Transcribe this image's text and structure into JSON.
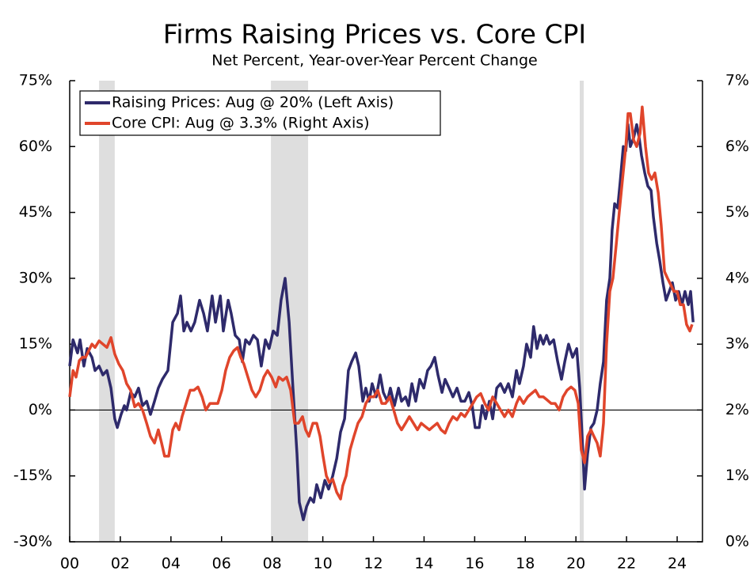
{
  "chart_data": {
    "type": "line",
    "title": "Firms Raising Prices vs. Core CPI",
    "subtitle": "Net Percent, Year-over-Year Percent Change",
    "xlim": [
      2000,
      2025
    ],
    "xticks": [
      {
        "value": 2000,
        "label": "00"
      },
      {
        "value": 2002,
        "label": "02"
      },
      {
        "value": 2004,
        "label": "04"
      },
      {
        "value": 2006,
        "label": "06"
      },
      {
        "value": 2008,
        "label": "08"
      },
      {
        "value": 2010,
        "label": "10"
      },
      {
        "value": 2012,
        "label": "12"
      },
      {
        "value": 2014,
        "label": "14"
      },
      {
        "value": 2016,
        "label": "16"
      },
      {
        "value": 2018,
        "label": "18"
      },
      {
        "value": 2020,
        "label": "20"
      },
      {
        "value": 2022,
        "label": "22"
      },
      {
        "value": 2024,
        "label": "24"
      }
    ],
    "ylim": [
      -30,
      75
    ],
    "yticks": [
      {
        "value": -30,
        "label": "-30%"
      },
      {
        "value": -15,
        "label": "-15%"
      },
      {
        "value": 0,
        "label": "0%"
      },
      {
        "value": 15,
        "label": "15%"
      },
      {
        "value": 30,
        "label": "30%"
      },
      {
        "value": 45,
        "label": "45%"
      },
      {
        "value": 60,
        "label": "60%"
      },
      {
        "value": 75,
        "label": "75%"
      }
    ],
    "y2lim": [
      0,
      7
    ],
    "y2ticks": [
      {
        "value": 0,
        "label": "0%"
      },
      {
        "value": 1,
        "label": "1%"
      },
      {
        "value": 2,
        "label": "2%"
      },
      {
        "value": 3,
        "label": "3%"
      },
      {
        "value": 4,
        "label": "4%"
      },
      {
        "value": 5,
        "label": "5%"
      },
      {
        "value": 6,
        "label": "6%"
      },
      {
        "value": 7,
        "label": "7%"
      }
    ],
    "shaded_periods": [
      [
        2001.16,
        2001.78
      ],
      [
        2007.95,
        2009.42
      ],
      [
        2020.15,
        2020.31
      ]
    ],
    "shade_color": "#dedede",
    "legend": "upper left",
    "series": [
      {
        "name": "Raising Prices: Aug @ 20% (Left Axis)",
        "color": "#2e2a6b",
        "axis": "y",
        "x": [
          2000.0,
          2000.13,
          2000.31,
          2000.41,
          2000.56,
          2000.69,
          2000.88,
          2001.0,
          2001.16,
          2001.31,
          2001.47,
          2001.63,
          2001.78,
          2001.88,
          2002.03,
          2002.16,
          2002.25,
          2002.41,
          2002.57,
          2002.72,
          2002.88,
          2003.04,
          2003.19,
          2003.35,
          2003.5,
          2003.66,
          2003.88,
          2004.07,
          2004.26,
          2004.38,
          2004.51,
          2004.63,
          2004.79,
          2004.94,
          2005.13,
          2005.29,
          2005.44,
          2005.63,
          2005.76,
          2005.95,
          2006.07,
          2006.26,
          2006.38,
          2006.54,
          2006.7,
          2006.82,
          2006.95,
          2007.1,
          2007.26,
          2007.42,
          2007.57,
          2007.73,
          2007.88,
          2008.04,
          2008.2,
          2008.35,
          2008.51,
          2008.67,
          2008.82,
          2008.98,
          2009.07,
          2009.23,
          2009.36,
          2009.51,
          2009.64,
          2009.76,
          2009.92,
          2010.08,
          2010.23,
          2010.39,
          2010.55,
          2010.7,
          2010.86,
          2011.01,
          2011.14,
          2011.3,
          2011.42,
          2011.58,
          2011.7,
          2011.83,
          2011.95,
          2012.11,
          2012.27,
          2012.39,
          2012.55,
          2012.67,
          2012.83,
          2012.99,
          2013.11,
          2013.27,
          2013.39,
          2013.52,
          2013.67,
          2013.83,
          2013.99,
          2014.14,
          2014.27,
          2014.42,
          2014.55,
          2014.71,
          2014.83,
          2014.99,
          2015.14,
          2015.3,
          2015.46,
          2015.61,
          2015.77,
          2015.9,
          2016.02,
          2016.18,
          2016.3,
          2016.43,
          2016.58,
          2016.71,
          2016.87,
          2017.02,
          2017.18,
          2017.33,
          2017.49,
          2017.65,
          2017.77,
          2017.93,
          2018.05,
          2018.21,
          2018.33,
          2018.46,
          2018.59,
          2018.71,
          2018.84,
          2018.96,
          2019.12,
          2019.28,
          2019.43,
          2019.56,
          2019.71,
          2019.87,
          2020.03,
          2020.15,
          2020.28,
          2020.34,
          2020.46,
          2020.59,
          2020.71,
          2020.84,
          2020.96,
          2021.09,
          2021.21,
          2021.34,
          2021.43,
          2021.53,
          2021.65,
          2021.75,
          2021.87,
          2021.97,
          2022.06,
          2022.15,
          2022.28,
          2022.4,
          2022.5,
          2022.59,
          2022.72,
          2022.84,
          2022.97,
          2023.06,
          2023.19,
          2023.31,
          2023.44,
          2023.56,
          2023.69,
          2023.81,
          2023.94,
          2024.06,
          2024.19,
          2024.31,
          2024.44,
          2024.53,
          2024.63
        ],
        "values": [
          10,
          16,
          13,
          16,
          10,
          14,
          12,
          9,
          10,
          8,
          9,
          5,
          -2,
          -4,
          -1,
          1,
          0,
          4,
          3,
          5,
          1,
          2,
          -1,
          2,
          5,
          7,
          9,
          20,
          22,
          26,
          18,
          20,
          18,
          20,
          25,
          22,
          18,
          26,
          20,
          26,
          18,
          25,
          22,
          17,
          16,
          11,
          16,
          15,
          17,
          16,
          10,
          16,
          14,
          18,
          17,
          25,
          30,
          20,
          5,
          -10,
          -21,
          -25,
          -22,
          -20,
          -21,
          -17,
          -20,
          -16,
          -18,
          -15,
          -11,
          -5,
          -2,
          9,
          11,
          13,
          10,
          2,
          5,
          2,
          6,
          3,
          8,
          4,
          2,
          5,
          1,
          5,
          2,
          3,
          1,
          6,
          2,
          7,
          5,
          9,
          10,
          12,
          8,
          4,
          7,
          5,
          3,
          5,
          2,
          2,
          4,
          1,
          -4,
          -4,
          1,
          -2,
          2,
          -2,
          5,
          6,
          4,
          6,
          3,
          9,
          6,
          10,
          15,
          12,
          19,
          14,
          17,
          15,
          17,
          15,
          16,
          11,
          7,
          11,
          15,
          12,
          14,
          5,
          -10,
          -18,
          -10,
          -4,
          -3,
          0,
          6,
          11,
          25,
          30,
          41,
          47,
          46,
          52,
          60,
          59,
          65,
          60,
          62,
          65,
          62,
          58,
          54,
          51,
          50,
          44,
          38,
          34,
          29,
          25,
          27,
          29,
          25,
          27,
          24,
          27,
          24,
          27,
          20
        ]
      },
      {
        "name": "Core CPI: Aug @ 3.3% (Right Axis)",
        "color": "#e0452b",
        "axis": "y2",
        "x": [
          2000.0,
          2000.13,
          2000.25,
          2000.38,
          2000.5,
          2000.63,
          2000.75,
          2000.88,
          2001.0,
          2001.16,
          2001.31,
          2001.47,
          2001.63,
          2001.78,
          2001.94,
          2002.1,
          2002.25,
          2002.41,
          2002.57,
          2002.72,
          2002.88,
          2003.04,
          2003.19,
          2003.35,
          2003.5,
          2003.63,
          2003.75,
          2003.91,
          2004.07,
          2004.19,
          2004.32,
          2004.44,
          2004.6,
          2004.76,
          2004.91,
          2005.07,
          2005.23,
          2005.38,
          2005.54,
          2005.69,
          2005.85,
          2006.01,
          2006.16,
          2006.32,
          2006.48,
          2006.63,
          2006.76,
          2006.88,
          2007.04,
          2007.2,
          2007.35,
          2007.51,
          2007.67,
          2007.82,
          2007.98,
          2008.14,
          2008.26,
          2008.42,
          2008.57,
          2008.73,
          2008.89,
          2009.04,
          2009.2,
          2009.32,
          2009.45,
          2009.61,
          2009.76,
          2009.89,
          2010.01,
          2010.14,
          2010.26,
          2010.39,
          2010.55,
          2010.7,
          2010.79,
          2010.92,
          2011.08,
          2011.23,
          2011.39,
          2011.55,
          2011.7,
          2011.86,
          2012.02,
          2012.17,
          2012.33,
          2012.48,
          2012.64,
          2012.8,
          2012.95,
          2013.11,
          2013.27,
          2013.42,
          2013.58,
          2013.74,
          2013.89,
          2014.05,
          2014.21,
          2014.36,
          2014.52,
          2014.67,
          2014.83,
          2014.99,
          2015.14,
          2015.3,
          2015.46,
          2015.61,
          2015.77,
          2015.93,
          2016.08,
          2016.24,
          2016.4,
          2016.55,
          2016.71,
          2016.87,
          2017.02,
          2017.18,
          2017.33,
          2017.49,
          2017.65,
          2017.77,
          2017.93,
          2018.09,
          2018.24,
          2018.4,
          2018.55,
          2018.71,
          2018.87,
          2019.02,
          2019.18,
          2019.34,
          2019.49,
          2019.65,
          2019.81,
          2019.96,
          2020.09,
          2020.21,
          2020.34,
          2020.46,
          2020.59,
          2020.71,
          2020.84,
          2020.96,
          2021.09,
          2021.21,
          2021.34,
          2021.46,
          2021.59,
          2021.71,
          2021.84,
          2021.97,
          2022.06,
          2022.15,
          2022.28,
          2022.4,
          2022.53,
          2022.62,
          2022.75,
          2022.87,
          2022.99,
          2023.12,
          2023.25,
          2023.37,
          2023.5,
          2023.62,
          2023.75,
          2023.87,
          2024.0,
          2024.12,
          2024.25,
          2024.37,
          2024.5,
          2024.59
        ],
        "values": [
          2.2,
          2.6,
          2.5,
          2.75,
          2.8,
          2.8,
          2.9,
          3.0,
          2.95,
          3.05,
          3.0,
          2.95,
          3.1,
          2.85,
          2.7,
          2.6,
          2.4,
          2.3,
          2.05,
          2.1,
          2.0,
          1.8,
          1.6,
          1.5,
          1.7,
          1.5,
          1.3,
          1.3,
          1.7,
          1.8,
          1.7,
          1.9,
          2.1,
          2.3,
          2.3,
          2.35,
          2.2,
          2.0,
          2.1,
          2.1,
          2.1,
          2.3,
          2.6,
          2.8,
          2.9,
          2.95,
          2.8,
          2.7,
          2.5,
          2.3,
          2.2,
          2.3,
          2.5,
          2.6,
          2.5,
          2.35,
          2.5,
          2.45,
          2.5,
          2.3,
          1.8,
          1.8,
          1.9,
          1.7,
          1.6,
          1.8,
          1.8,
          1.6,
          1.3,
          1.0,
          0.9,
          0.95,
          0.75,
          0.65,
          0.85,
          1.0,
          1.4,
          1.6,
          1.8,
          1.9,
          2.1,
          2.2,
          2.2,
          2.3,
          2.1,
          2.1,
          2.2,
          2.0,
          1.8,
          1.7,
          1.8,
          1.9,
          1.8,
          1.7,
          1.8,
          1.75,
          1.7,
          1.75,
          1.8,
          1.7,
          1.65,
          1.8,
          1.9,
          1.85,
          1.95,
          1.9,
          2.0,
          2.1,
          2.2,
          2.25,
          2.1,
          2.0,
          2.2,
          2.1,
          2.0,
          1.9,
          2.0,
          1.9,
          2.1,
          2.2,
          2.1,
          2.2,
          2.25,
          2.3,
          2.2,
          2.2,
          2.15,
          2.1,
          2.1,
          2.0,
          2.2,
          2.3,
          2.35,
          2.3,
          2.1,
          1.4,
          1.2,
          1.6,
          1.7,
          1.6,
          1.5,
          1.3,
          1.8,
          3.0,
          3.8,
          4.0,
          4.5,
          5.0,
          5.5,
          6.0,
          6.5,
          6.5,
          6.1,
          6.0,
          6.2,
          6.6,
          6.0,
          5.6,
          5.5,
          5.6,
          5.3,
          4.8,
          4.1,
          4.0,
          3.9,
          3.8,
          3.8,
          3.6,
          3.6,
          3.3,
          3.2,
          3.3
        ]
      }
    ]
  }
}
